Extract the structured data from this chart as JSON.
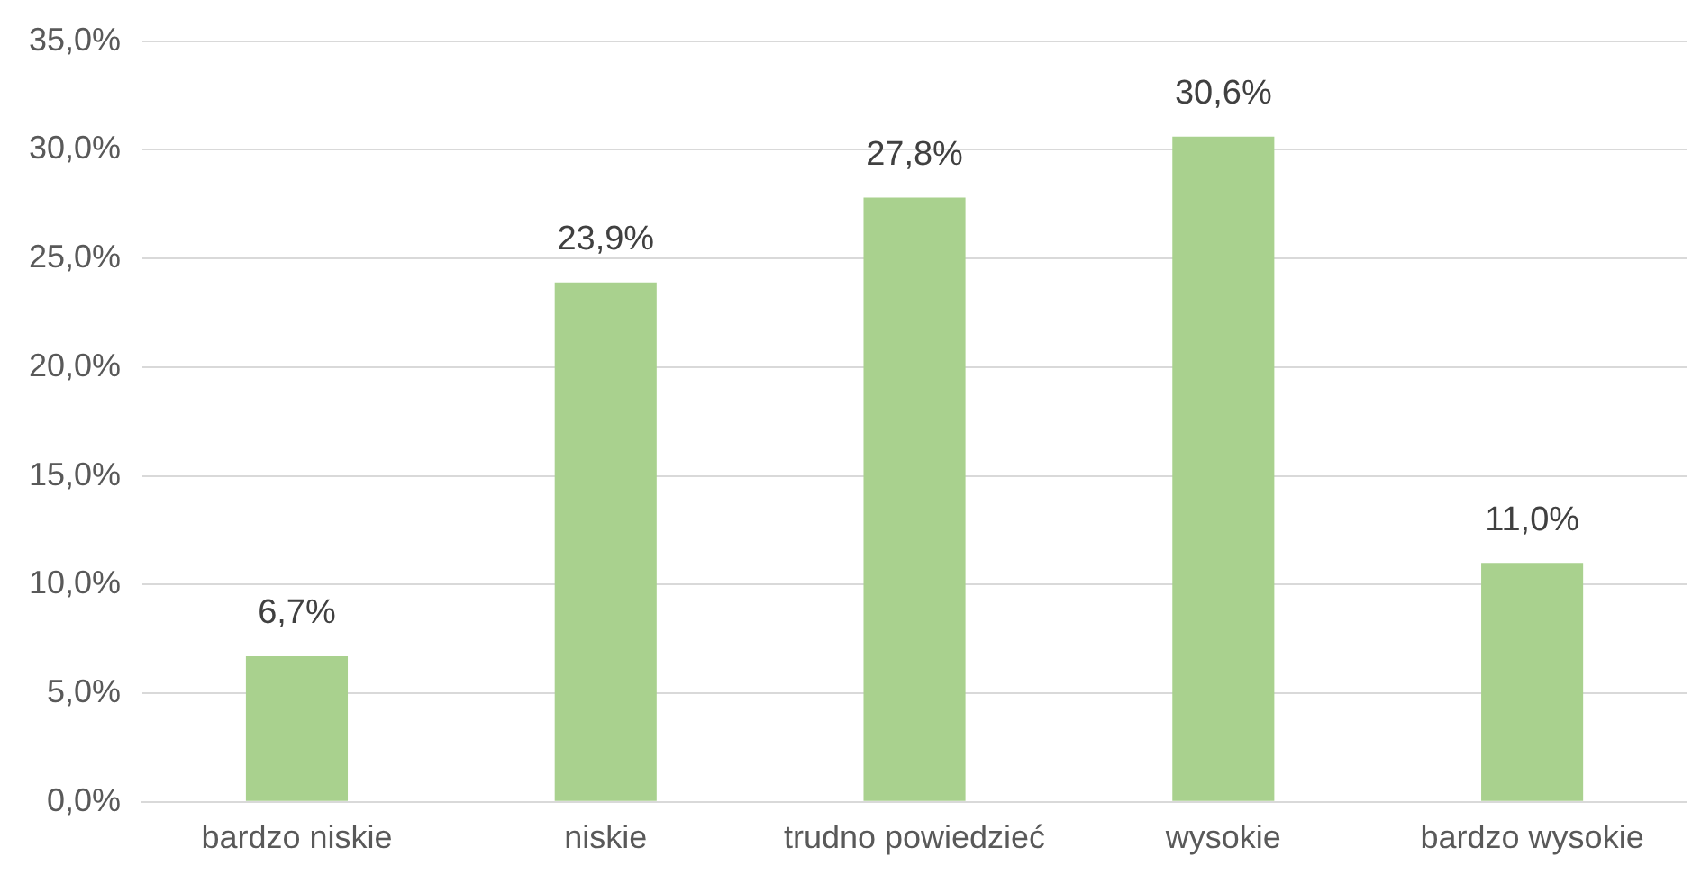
{
  "chart_data": {
    "type": "bar",
    "categories": [
      "bardzo niskie",
      "niskie",
      "trudno powiedzieć",
      "wysokie",
      "bardzo wysokie"
    ],
    "values": [
      6.7,
      23.9,
      27.8,
      30.6,
      11.0
    ],
    "value_labels": [
      "6,7%",
      "23,9%",
      "27,8%",
      "30,6%",
      "11,0%"
    ],
    "color": "#a9d18e",
    "ylim": [
      0,
      35
    ],
    "yticks": [
      {
        "value": 0,
        "label": "0,0%"
      },
      {
        "value": 5,
        "label": "5,0%"
      },
      {
        "value": 10,
        "label": "10,0%"
      },
      {
        "value": 15,
        "label": "15,0%"
      },
      {
        "value": 20,
        "label": "20,0%"
      },
      {
        "value": 25,
        "label": "25,0%"
      },
      {
        "value": 30,
        "label": "30,0%"
      },
      {
        "value": 35,
        "label": "35,0%"
      }
    ],
    "grid": "y",
    "legend": false
  }
}
